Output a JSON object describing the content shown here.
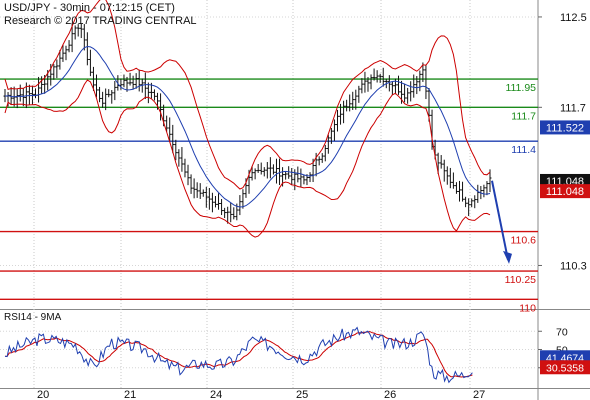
{
  "header": {
    "line1": "USD/JPY - 30min - 07:12:15 (CET)",
    "line2": "Research © 2017 TRADING CENTRAL"
  },
  "rsi_header": "RSI14 - 9MA",
  "colors": {
    "candles": "#111111",
    "bollinger": "#cc0000",
    "moving_average": "#1f3fb0",
    "resistance_green": "#1a8a1a",
    "pivot_blue": "#1f3fb0",
    "support_red": "#d01010",
    "rsi_line": "#1f3fb0",
    "rsi_ma": "#cc0000",
    "price_tag_blue": "#1f3fb0",
    "price_tag_black": "#111111",
    "price_tag_red": "#d01010",
    "forecast_arrow": "#1f3fb0"
  },
  "chart_data": [
    {
      "type": "candlestick",
      "title": "USD/JPY - 30min - 07:12:15 (CET)",
      "y_ticks": [
        "112.5",
        "111.7",
        "110.3"
      ],
      "ylim": [
        109.95,
        112.65
      ],
      "x_ticks": [
        "20",
        "21",
        "24",
        "25",
        "26",
        "27"
      ],
      "close_path": [
        [
          0,
          111.8
        ],
        [
          0.07,
          111.82
        ],
        [
          0.12,
          112.1
        ],
        [
          0.17,
          112.45
        ],
        [
          0.2,
          111.9
        ],
        [
          0.22,
          111.75
        ],
        [
          0.26,
          111.92
        ],
        [
          0.3,
          111.93
        ],
        [
          0.34,
          111.8
        ],
        [
          0.38,
          111.4
        ],
        [
          0.42,
          111.0
        ],
        [
          0.48,
          110.85
        ],
        [
          0.52,
          110.7
        ],
        [
          0.56,
          111.15
        ],
        [
          0.6,
          111.15
        ],
        [
          0.64,
          111.1
        ],
        [
          0.68,
          111.05
        ],
        [
          0.72,
          111.3
        ],
        [
          0.76,
          111.65
        ],
        [
          0.8,
          111.85
        ],
        [
          0.84,
          112.0
        ],
        [
          0.88,
          111.9
        ],
        [
          0.91,
          111.8
        ],
        [
          0.95,
          112.05
        ],
        [
          0.97,
          111.3
        ],
        [
          1.0,
          111.1
        ],
        [
          1.05,
          110.85
        ],
        [
          1.1,
          111.05
        ]
      ],
      "levels": [
        {
          "name": "resistance-2",
          "value": 111.95,
          "label": "111.95",
          "color": "#1a8a1a"
        },
        {
          "name": "resistance-1",
          "value": 111.7,
          "label": "111.7",
          "color": "#1a8a1a"
        },
        {
          "name": "pivot",
          "value": 111.4,
          "label": "111.4",
          "color": "#1f3fb0"
        },
        {
          "name": "support-1",
          "value": 110.6,
          "label": "110.6",
          "color": "#d01010"
        },
        {
          "name": "support-2",
          "value": 110.25,
          "label": "110.25",
          "color": "#d01010"
        },
        {
          "name": "support-3",
          "value": 110.0,
          "label": "110",
          "color": "#d01010"
        }
      ],
      "price_tags": [
        {
          "name": "ma-value-tag",
          "value": 111.522,
          "label": "111.522",
          "color": "#1f3fb0"
        },
        {
          "name": "last-price-tag",
          "value": 111.048,
          "label": "111.048",
          "color": "#111111"
        },
        {
          "name": "bid-price-tag",
          "value": 110.958,
          "label": "111.048",
          "color": "#d01010"
        }
      ],
      "forecast_arrow": {
        "from": 111.05,
        "to": 110.35
      }
    },
    {
      "type": "line",
      "title": "RSI14 - 9MA",
      "y_ticks": [
        "70",
        "50",
        "30"
      ],
      "ylim": [
        10,
        90
      ],
      "x_ticks": [
        "20",
        "21",
        "24",
        "25",
        "26",
        "27"
      ],
      "rsi_path": [
        [
          0,
          45
        ],
        [
          0.04,
          55
        ],
        [
          0.08,
          62
        ],
        [
          0.12,
          60
        ],
        [
          0.16,
          55
        ],
        [
          0.2,
          30
        ],
        [
          0.24,
          58
        ],
        [
          0.28,
          55
        ],
        [
          0.32,
          50
        ],
        [
          0.36,
          35
        ],
        [
          0.4,
          28
        ],
        [
          0.44,
          35
        ],
        [
          0.48,
          32
        ],
        [
          0.52,
          38
        ],
        [
          0.56,
          60
        ],
        [
          0.6,
          55
        ],
        [
          0.64,
          45
        ],
        [
          0.68,
          40
        ],
        [
          0.72,
          55
        ],
        [
          0.76,
          65
        ],
        [
          0.8,
          70
        ],
        [
          0.84,
          62
        ],
        [
          0.88,
          55
        ],
        [
          0.92,
          58
        ],
        [
          0.95,
          68
        ],
        [
          0.97,
          25
        ],
        [
          1.0,
          20
        ],
        [
          1.04,
          22
        ],
        [
          1.06,
          30
        ]
      ],
      "tags": [
        {
          "name": "rsi-value-tag",
          "value": 41.4674,
          "label": "41.4674",
          "color": "#1f3fb0"
        },
        {
          "name": "rsi-ma-tag",
          "value": 30.5358,
          "label": "30.5358",
          "color": "#d01010"
        }
      ]
    }
  ]
}
